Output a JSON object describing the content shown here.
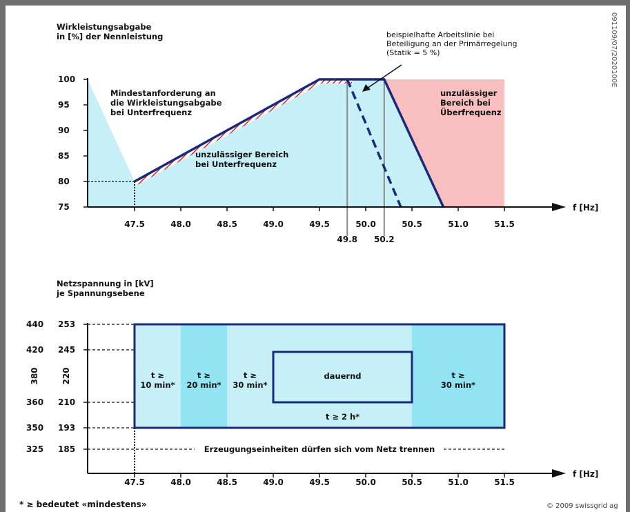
{
  "chart_data": [
    {
      "type": "area",
      "ylabel_lines": [
        "Wirkleistungsabgabe",
        "in [%] der Nennleistung"
      ],
      "xlabel": "f [Hz]",
      "xlim": [
        46.9,
        52.1
      ],
      "ylim": [
        75,
        100
      ],
      "x_ticks": [
        "47.5",
        "48.0",
        "48.5",
        "49.0",
        "49.5",
        "50.0",
        "50.5",
        "51.0",
        "51.5"
      ],
      "x_tick_values": [
        47.5,
        48.0,
        48.5,
        49.0,
        49.5,
        50.0,
        50.5,
        51.0,
        51.5
      ],
      "extra_ticks": [
        {
          "value": 49.8,
          "label": "49.8"
        },
        {
          "value": 50.2,
          "label": "50.2"
        }
      ],
      "y_ticks": [
        75,
        80,
        85,
        90,
        95,
        100
      ],
      "min_requirement_line": [
        [
          47.5,
          80
        ],
        [
          49.5,
          100
        ],
        [
          50.2,
          100
        ],
        [
          50.84,
          75
        ]
      ],
      "primary_control_line": [
        [
          49.8,
          100
        ],
        [
          50.38,
          75
        ]
      ],
      "marker_line": {
        "from": [
          47.5,
          80
        ],
        "to": [
          47.0,
          80
        ]
      },
      "regions": {
        "underfrequency_fill_color": "#c6eff8",
        "overfrequency_fill_color": "#f9bfc0",
        "line_color": "#1a2a7a",
        "hatch_color": "#e02020"
      },
      "annotations": {
        "underfreq_requirement": [
          "Mindestanforderung an",
          "die Wirkleistungsabgabe",
          "bei Unterfrequenz"
        ],
        "underfreq_forbidden": [
          "unzulässiger Bereich",
          "bei Unterfrequenz"
        ],
        "overfreq_forbidden": [
          "unzulässiger",
          "Bereich bei",
          "Überfrequenz"
        ],
        "primary_control": [
          "beispielhafte Arbeitslinie bei",
          "Beteiligung an der Primärregelung",
          "(Statik = 5 %)"
        ]
      }
    },
    {
      "type": "table",
      "ylabel_lines": [
        "Netzspannung in [kV]",
        "je Spannungsebene"
      ],
      "xlabel": "f [Hz]",
      "xlim": [
        46.9,
        52.1
      ],
      "x_ticks": [
        "47.5",
        "48.0",
        "48.5",
        "49.0",
        "49.5",
        "50.0",
        "50.5",
        "51.0",
        "51.5"
      ],
      "x_tick_values": [
        47.5,
        48.0,
        48.5,
        49.0,
        49.5,
        50.0,
        50.5,
        51.0,
        51.5
      ],
      "voltage_levels": [
        {
          "v380": "440",
          "v220": "253"
        },
        {
          "v380": "420",
          "v220": "245"
        },
        {
          "v380": "360",
          "v220": "210"
        },
        {
          "v380": "350",
          "v220": "193"
        },
        {
          "v380": "325",
          "v220": "185"
        }
      ],
      "level_headers": {
        "v380": "380",
        "v220": "220"
      },
      "zones": [
        {
          "x0": 47.5,
          "x1": 48.0,
          "label": [
            "t ≥",
            "10 min*"
          ],
          "color": "#c6eff8"
        },
        {
          "x0": 48.0,
          "x1": 48.5,
          "label": [
            "t ≥",
            "20 min*"
          ],
          "color": "#92e4f2"
        },
        {
          "x0": 48.5,
          "x1": 49.0,
          "label": [
            "t ≥",
            "30 min*"
          ],
          "color": "#c6eff8"
        },
        {
          "x0": 50.5,
          "x1": 51.5,
          "label": [
            "t ≥",
            "30 min*"
          ],
          "color": "#92e4f2"
        }
      ],
      "center_zone": {
        "x0": 49.0,
        "x1": 50.5,
        "upper_label": "dauernd",
        "lower_label": "t ≥ 2 h*",
        "color": "#c6eff8"
      },
      "disconnect_text": "Erzeugungseinheiten dürfen sich vom Netz trennen",
      "line_color": "#1a2a7a"
    }
  ],
  "footnote": "* ≥ bedeutet «mindestens»",
  "copyright": "© 2009 swissgrid ag",
  "doc_id": "091109/07/2020100E"
}
